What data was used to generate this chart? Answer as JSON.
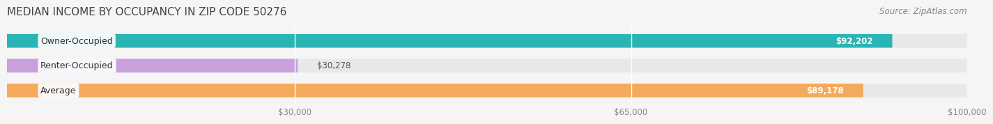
{
  "title": "MEDIAN INCOME BY OCCUPANCY IN ZIP CODE 50276",
  "source": "Source: ZipAtlas.com",
  "categories": [
    "Owner-Occupied",
    "Renter-Occupied",
    "Average"
  ],
  "values": [
    92202,
    30278,
    89178
  ],
  "bar_colors": [
    "#2ab5b5",
    "#c9a0dc",
    "#f5a95a"
  ],
  "label_colors": [
    "#ffffff",
    "#555555",
    "#ffffff"
  ],
  "value_labels": [
    "$92,202",
    "$30,278",
    "$89,178"
  ],
  "tick_labels": [
    "$30,000",
    "$65,000",
    "$100,000"
  ],
  "tick_values": [
    30000,
    65000,
    100000
  ],
  "xmin": 0,
  "xmax": 100000,
  "bar_height": 0.55,
  "background_color": "#f5f5f5",
  "bar_bg_color": "#e8e8e8",
  "title_fontsize": 11,
  "source_fontsize": 8.5,
  "label_fontsize": 9,
  "value_fontsize": 8.5,
  "tick_fontsize": 8.5
}
